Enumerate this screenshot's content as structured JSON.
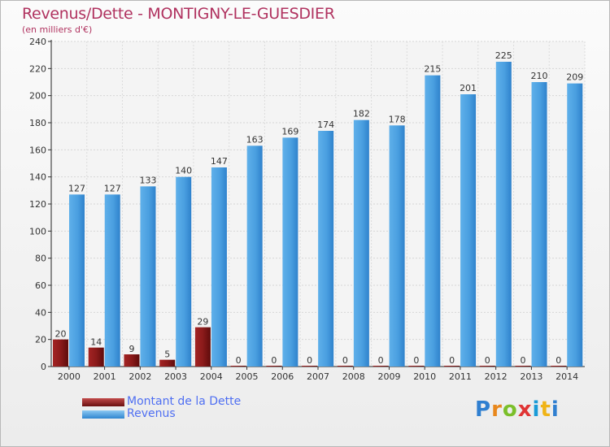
{
  "chart_data": {
    "type": "bar",
    "title": "Revenus/Dette - MONTIGNY-LE-GUESDIER",
    "subtitle": "(en milliers d'€)",
    "categories": [
      "2000",
      "2001",
      "2002",
      "2003",
      "2004",
      "2005",
      "2006",
      "2007",
      "2008",
      "2009",
      "2010",
      "2011",
      "2012",
      "2013",
      "2014"
    ],
    "series": [
      {
        "name": "Montant de la Dette",
        "color": "#8b1a1a",
        "values": [
          20,
          14,
          9,
          5,
          29,
          0,
          0,
          0,
          0,
          0,
          0,
          0,
          0,
          0,
          0
        ]
      },
      {
        "name": "Revenus",
        "color": "#4a9fe0",
        "values": [
          127,
          127,
          133,
          140,
          147,
          163,
          169,
          174,
          182,
          178,
          215,
          201,
          225,
          210,
          209
        ]
      }
    ],
    "y_ticks": [
      "0",
      "20",
      "40",
      "60",
      "80",
      "100",
      "120",
      "140",
      "160",
      "180",
      "200",
      "220",
      "240"
    ],
    "ylim": [
      0,
      240
    ],
    "grid": true,
    "legend_position": "bottom-left"
  },
  "logo": {
    "letters": [
      "P",
      "r",
      "o",
      "x",
      "i",
      "t",
      "i"
    ]
  }
}
